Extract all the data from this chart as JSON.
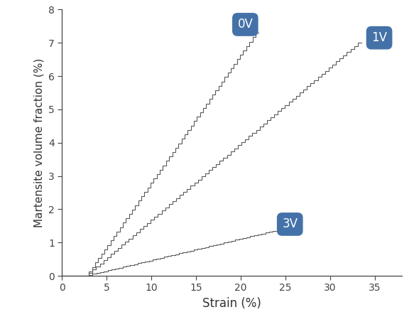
{
  "xlabel": "Strain (%)",
  "ylabel": "Martensite volume fraction (%)",
  "xlim": [
    0,
    38
  ],
  "ylim": [
    0,
    8
  ],
  "xticks": [
    0,
    5,
    10,
    15,
    20,
    25,
    30,
    35
  ],
  "yticks": [
    0,
    1,
    2,
    3,
    4,
    5,
    6,
    7,
    8
  ],
  "line_color": "#5a5a5a",
  "label_bg_color": "#4472a8",
  "label_text_color": "#ffffff",
  "labels": {
    "0V": [
      20.5,
      7.55
    ],
    "1V": [
      35.5,
      7.15
    ],
    "3V": [
      25.5,
      1.55
    ]
  },
  "curve_0V": {
    "x_flat_end": 3.0,
    "x_end": 22.0,
    "y_end": 7.3,
    "n_steps": 55
  },
  "curve_1V": {
    "x_flat_end": 3.0,
    "x_end": 33.5,
    "y_end": 7.0,
    "n_steps": 75
  },
  "curve_3V": {
    "x_flat_end": 3.0,
    "x_end": 24.0,
    "y_end": 1.35,
    "n_steps": 50
  },
  "figsize": [
    5.83,
    4.46
  ],
  "dpi": 100
}
